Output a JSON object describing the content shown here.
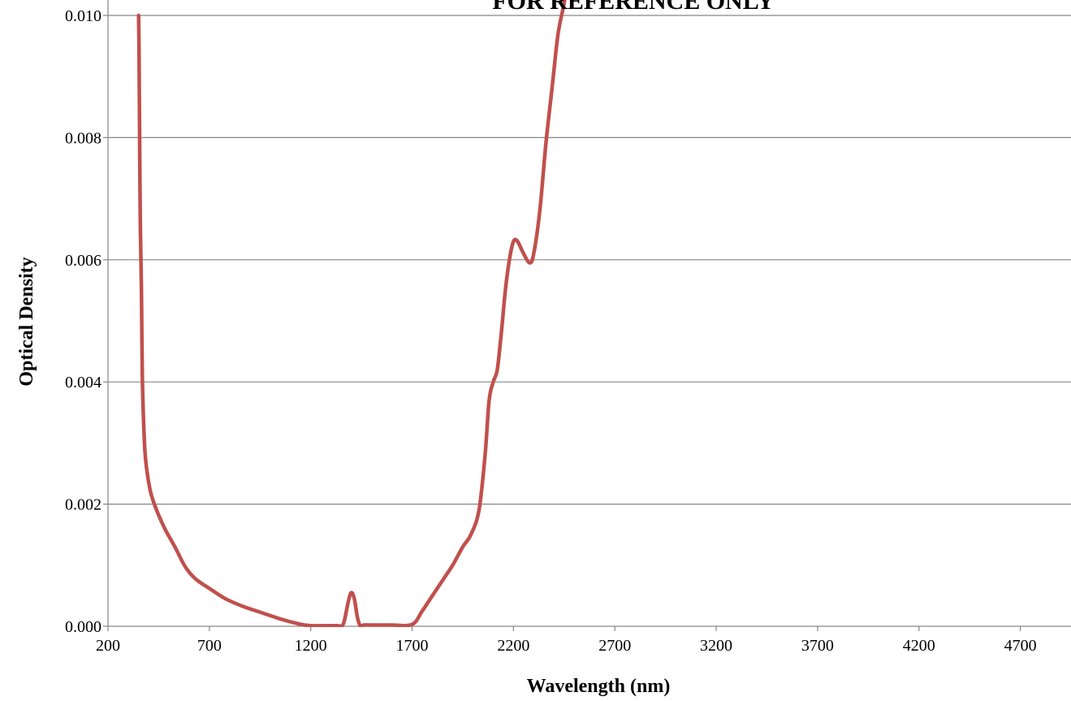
{
  "chart_data": {
    "type": "line",
    "title": "FOR REFERENCE ONLY",
    "xlabel": "Wavelength (nm)",
    "ylabel": "Optical Density",
    "xlim": [
      200,
      4950
    ],
    "ylim": [
      0,
      0.01
    ],
    "xticks": [
      200,
      700,
      1200,
      1700,
      2200,
      2700,
      3200,
      3700,
      4200,
      4700
    ],
    "yticks": [
      0,
      0.002,
      0.004,
      0.006,
      0.008,
      0.01
    ],
    "xtick_labels": [
      "200",
      "700",
      "1200",
      "1700",
      "2200",
      "2700",
      "3200",
      "3700",
      "4200",
      "4700"
    ],
    "ytick_labels": [
      "0.000",
      "0.002",
      "0.004",
      "0.006",
      "0.008",
      "0.010"
    ],
    "grid": "horizontal",
    "legend": "none",
    "colors": {
      "series": "#c0504d",
      "grid": "#868686",
      "axis": "#868686"
    },
    "series": [
      {
        "x": [
          351,
          353,
          355,
          357,
          360,
          365,
          370,
          380,
          390,
          410,
          440,
          480,
          530,
          580,
          630,
          700,
          780,
          870,
          960,
          1050,
          1140,
          1200,
          1330,
          1350,
          1365,
          1385,
          1400,
          1415,
          1430,
          1445,
          1460,
          1500,
          1600,
          1700,
          1750,
          1800,
          1850,
          1900,
          1950,
          1990,
          2030,
          2060,
          2080,
          2100,
          2120,
          2140,
          2160,
          2180,
          2200,
          2220,
          2250,
          2280,
          2300,
          2330,
          2360,
          2390,
          2420,
          2450,
          2460
        ],
        "y": [
          0.01,
          0.0095,
          0.0085,
          0.0075,
          0.0065,
          0.0055,
          0.004,
          0.003,
          0.0026,
          0.0022,
          0.0019,
          0.0016,
          0.0013,
          0.00098,
          0.00078,
          0.00062,
          0.00045,
          0.00032,
          0.00022,
          0.00012,
          4e-05,
          1e-05,
          1e-05,
          0.0,
          8e-05,
          0.0004,
          0.00055,
          0.00045,
          0.00015,
          0.0,
          2e-05,
          2e-05,
          2e-05,
          3e-05,
          0.00025,
          0.0005,
          0.00075,
          0.001,
          0.0013,
          0.0015,
          0.0019,
          0.0028,
          0.0037,
          0.004,
          0.0042,
          0.0048,
          0.0055,
          0.006,
          0.0063,
          0.0063,
          0.0061,
          0.00595,
          0.0061,
          0.0068,
          0.0079,
          0.0088,
          0.0097,
          0.0102,
          0.0105
        ]
      }
    ]
  }
}
